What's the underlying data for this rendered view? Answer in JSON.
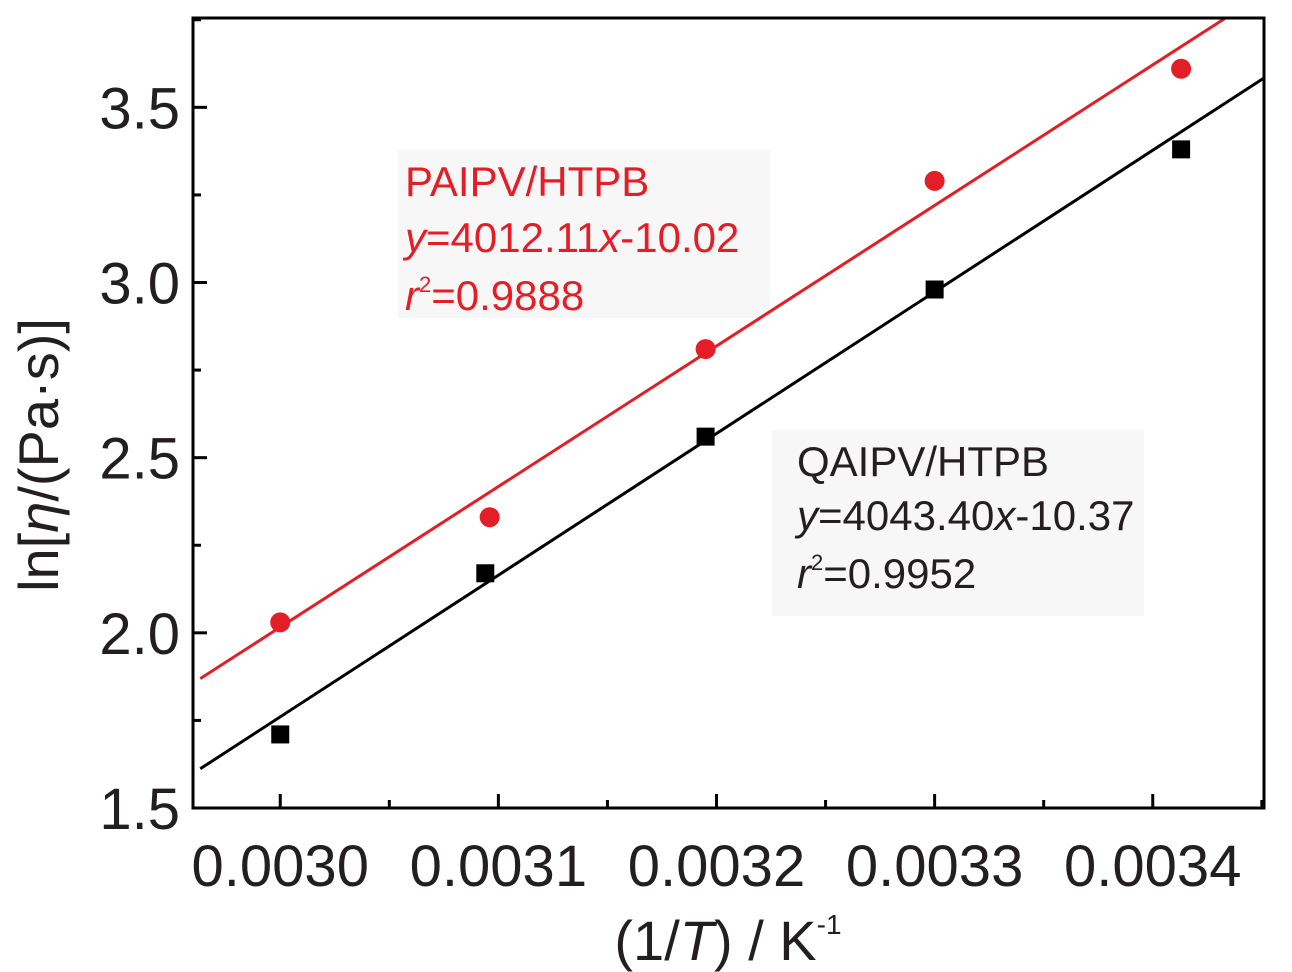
{
  "chart_data": {
    "type": "scatter",
    "xlabel": {
      "prefix": "(1/",
      "var": "T",
      "suffix": ") / K",
      "sup": "-1"
    },
    "ylabel": {
      "prefix": "ln[",
      "var": "η",
      "suffix": "/(Pa·s)]"
    },
    "xlim": [
      0.00296,
      0.003451
    ],
    "ylim": [
      1.5,
      3.755
    ],
    "x_ticks": [
      0.003,
      0.0031,
      0.0032,
      0.0033,
      0.0034
    ],
    "x_tick_labels": [
      "0.0030",
      "0.0031",
      "0.0032",
      "0.0033",
      "0.0034"
    ],
    "y_ticks": [
      1.5,
      2.0,
      2.5,
      3.0,
      3.5
    ],
    "y_tick_labels": [
      "1.5",
      "2.0",
      "2.5",
      "3.0",
      "3.5"
    ],
    "grid": false,
    "series": [
      {
        "name": "PAIPV/HTPB",
        "color": "#e41e26",
        "marker": "circle",
        "x": [
          0.003,
          0.003096,
          0.003195,
          0.0033,
          0.003413
        ],
        "y": [
          2.03,
          2.33,
          2.81,
          3.29,
          3.61
        ],
        "fit": {
          "slope": 4012.11,
          "intercept": -10.02,
          "r2": "0.9888"
        },
        "annotation": {
          "name": "PAIPV/HTPB",
          "eq_prefix": "y",
          "eq_mid": "=4012.11",
          "eq_var": "x",
          "eq_tail": "-10.02",
          "r_var": "r",
          "r_sup": "2",
          "r_val": "=0.9888"
        }
      },
      {
        "name": "QAIPV/HTPB",
        "color": "#000000",
        "marker": "square",
        "x": [
          0.003,
          0.003094,
          0.003195,
          0.0033,
          0.003413
        ],
        "y": [
          1.71,
          2.17,
          2.56,
          2.98,
          3.38
        ],
        "fit": {
          "slope": 4043.4,
          "intercept": -10.37,
          "r2": "0.9952"
        },
        "annotation": {
          "name": "QAIPV/HTPB",
          "eq_prefix": "y",
          "eq_mid": "=4043.40",
          "eq_var": "x",
          "eq_tail": "-10.37",
          "r_var": "r",
          "r_sup": "2",
          "r_val": "=0.9952"
        }
      }
    ]
  }
}
